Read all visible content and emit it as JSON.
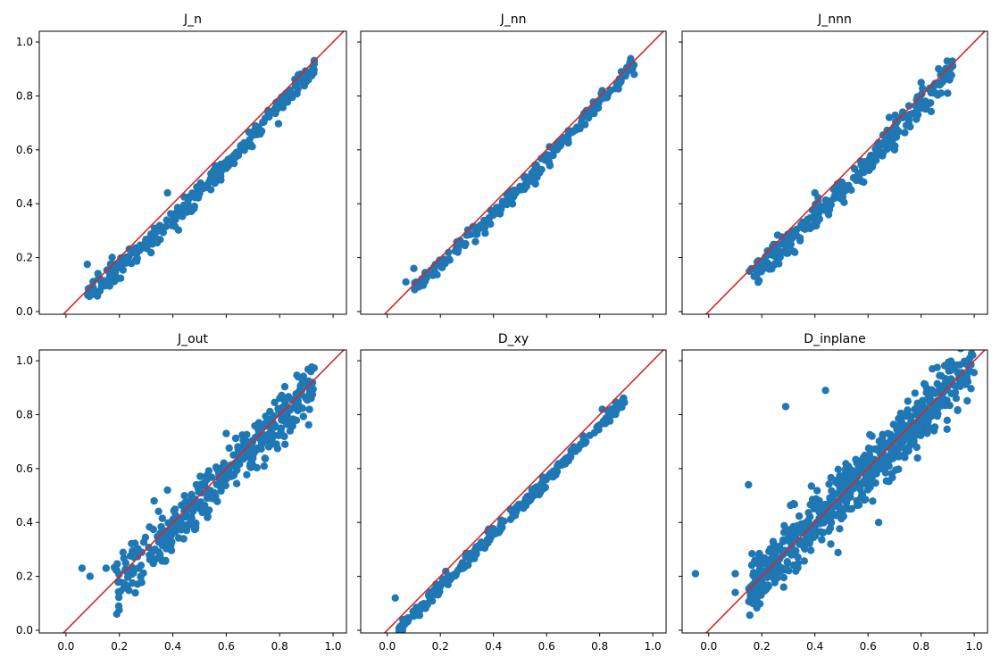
{
  "colors": {
    "points": "#1f77b4",
    "identity_line": "#d62728",
    "axes": "#000000"
  },
  "chart_data": [
    {
      "type": "scatter",
      "title": "J_n",
      "xlim": [
        -0.1,
        1.05
      ],
      "ylim": [
        -0.01,
        1.04
      ],
      "xticks": [
        "0.0",
        "0.2",
        "0.4",
        "0.6",
        "0.8",
        "1.0"
      ],
      "yticks": [
        "0.0",
        "0.2",
        "0.4",
        "0.6",
        "0.8",
        "1.0"
      ],
      "identity_line": true,
      "x_range": [
        0.08,
        0.93
      ],
      "y_fn": "x - 0.06*sin(pi*x)",
      "spread": 0.018,
      "n_points": 260,
      "outliers": [
        [
          0.08,
          0.175
        ],
        [
          0.38,
          0.44
        ],
        [
          0.56,
          0.54
        ],
        [
          0.92,
          0.875
        ]
      ]
    },
    {
      "type": "scatter",
      "title": "J_nn",
      "xlim": [
        -0.1,
        1.05
      ],
      "ylim": [
        -0.01,
        1.04
      ],
      "xticks": [
        "0.0",
        "0.2",
        "0.4",
        "0.6",
        "0.8",
        "1.0"
      ],
      "yticks": [
        "0.0",
        "0.2",
        "0.4",
        "0.6",
        "0.8",
        "1.0"
      ],
      "identity_line": true,
      "x_range": [
        0.1,
        0.93
      ],
      "y_fn": "x - 0.04*sin(pi*x)",
      "spread": 0.015,
      "n_points": 240,
      "outliers": [
        [
          0.07,
          0.11
        ],
        [
          0.1,
          0.16
        ],
        [
          0.93,
          0.88
        ]
      ]
    },
    {
      "type": "scatter",
      "title": "J_nnn",
      "xlim": [
        -0.1,
        1.05
      ],
      "ylim": [
        -0.01,
        1.04
      ],
      "xticks": [
        "0.0",
        "0.2",
        "0.4",
        "0.6",
        "0.8",
        "1.0"
      ],
      "yticks": [
        "0.0",
        "0.2",
        "0.4",
        "0.6",
        "0.8",
        "1.0"
      ],
      "identity_line": true,
      "x_range": [
        0.15,
        0.92
      ],
      "y_fn": "x - 0.05*sin(pi*x)",
      "spread": 0.025,
      "n_points": 300,
      "outliers": [
        [
          0.7,
          0.6
        ],
        [
          0.9,
          0.81
        ],
        [
          0.68,
          0.72
        ],
        [
          0.8,
          0.85
        ],
        [
          0.4,
          0.44
        ]
      ]
    },
    {
      "type": "scatter",
      "title": "J_out",
      "xlim": [
        -0.1,
        1.05
      ],
      "ylim": [
        -0.01,
        1.04
      ],
      "xticks": [
        "0.0",
        "0.2",
        "0.4",
        "0.6",
        "0.8",
        "1.0"
      ],
      "yticks": [
        "0.0",
        "0.2",
        "0.4",
        "0.6",
        "0.8",
        "1.0"
      ],
      "identity_line": true,
      "x_range": [
        0.18,
        0.93
      ],
      "y_fn": "x - 0.025",
      "spread": 0.045,
      "n_points": 420,
      "outliers": [
        [
          0.06,
          0.23
        ],
        [
          0.09,
          0.2
        ],
        [
          0.15,
          0.23
        ],
        [
          0.33,
          0.48
        ],
        [
          0.28,
          0.2
        ],
        [
          0.82,
          0.69
        ],
        [
          0.38,
          0.52
        ],
        [
          0.6,
          0.73
        ]
      ]
    },
    {
      "type": "scatter",
      "title": "D_xy",
      "xlim": [
        -0.1,
        1.05
      ],
      "ylim": [
        -0.01,
        1.04
      ],
      "xticks": [
        "0.0",
        "0.2",
        "0.4",
        "0.6",
        "0.8",
        "1.0"
      ],
      "yticks": [
        "0.0",
        "0.2",
        "0.4",
        "0.6",
        "0.8",
        "1.0"
      ],
      "identity_line": true,
      "x_range": [
        0.04,
        0.9
      ],
      "y_fn": "x - 0.04",
      "spread": 0.012,
      "n_points": 260,
      "outliers": [
        [
          0.03,
          0.12
        ],
        [
          0.06,
          0.03
        ],
        [
          0.12,
          0.08
        ],
        [
          0.89,
          0.86
        ],
        [
          0.81,
          0.82
        ]
      ]
    },
    {
      "type": "scatter",
      "title": "D_inplane",
      "xlim": [
        -0.1,
        1.05
      ],
      "ylim": [
        -0.01,
        1.04
      ],
      "xticks": [
        "0.0",
        "0.2",
        "0.4",
        "0.6",
        "0.8",
        "1.0"
      ],
      "yticks": [
        "0.0",
        "0.2",
        "0.4",
        "0.6",
        "0.8",
        "1.0"
      ],
      "identity_line": true,
      "x_range": [
        0.15,
        1.0
      ],
      "y_fn": "x",
      "spread": 0.055,
      "n_points": 620,
      "outliers": [
        [
          -0.05,
          0.21
        ],
        [
          0.1,
          0.21
        ],
        [
          0.1,
          0.14
        ],
        [
          0.15,
          0.54
        ],
        [
          0.29,
          0.83
        ],
        [
          0.44,
          0.89
        ],
        [
          0.32,
          0.47
        ],
        [
          0.46,
          0.32
        ],
        [
          0.64,
          0.4
        ],
        [
          0.56,
          0.57
        ],
        [
          0.75,
          0.85
        ],
        [
          0.18,
          0.2
        ]
      ]
    }
  ]
}
